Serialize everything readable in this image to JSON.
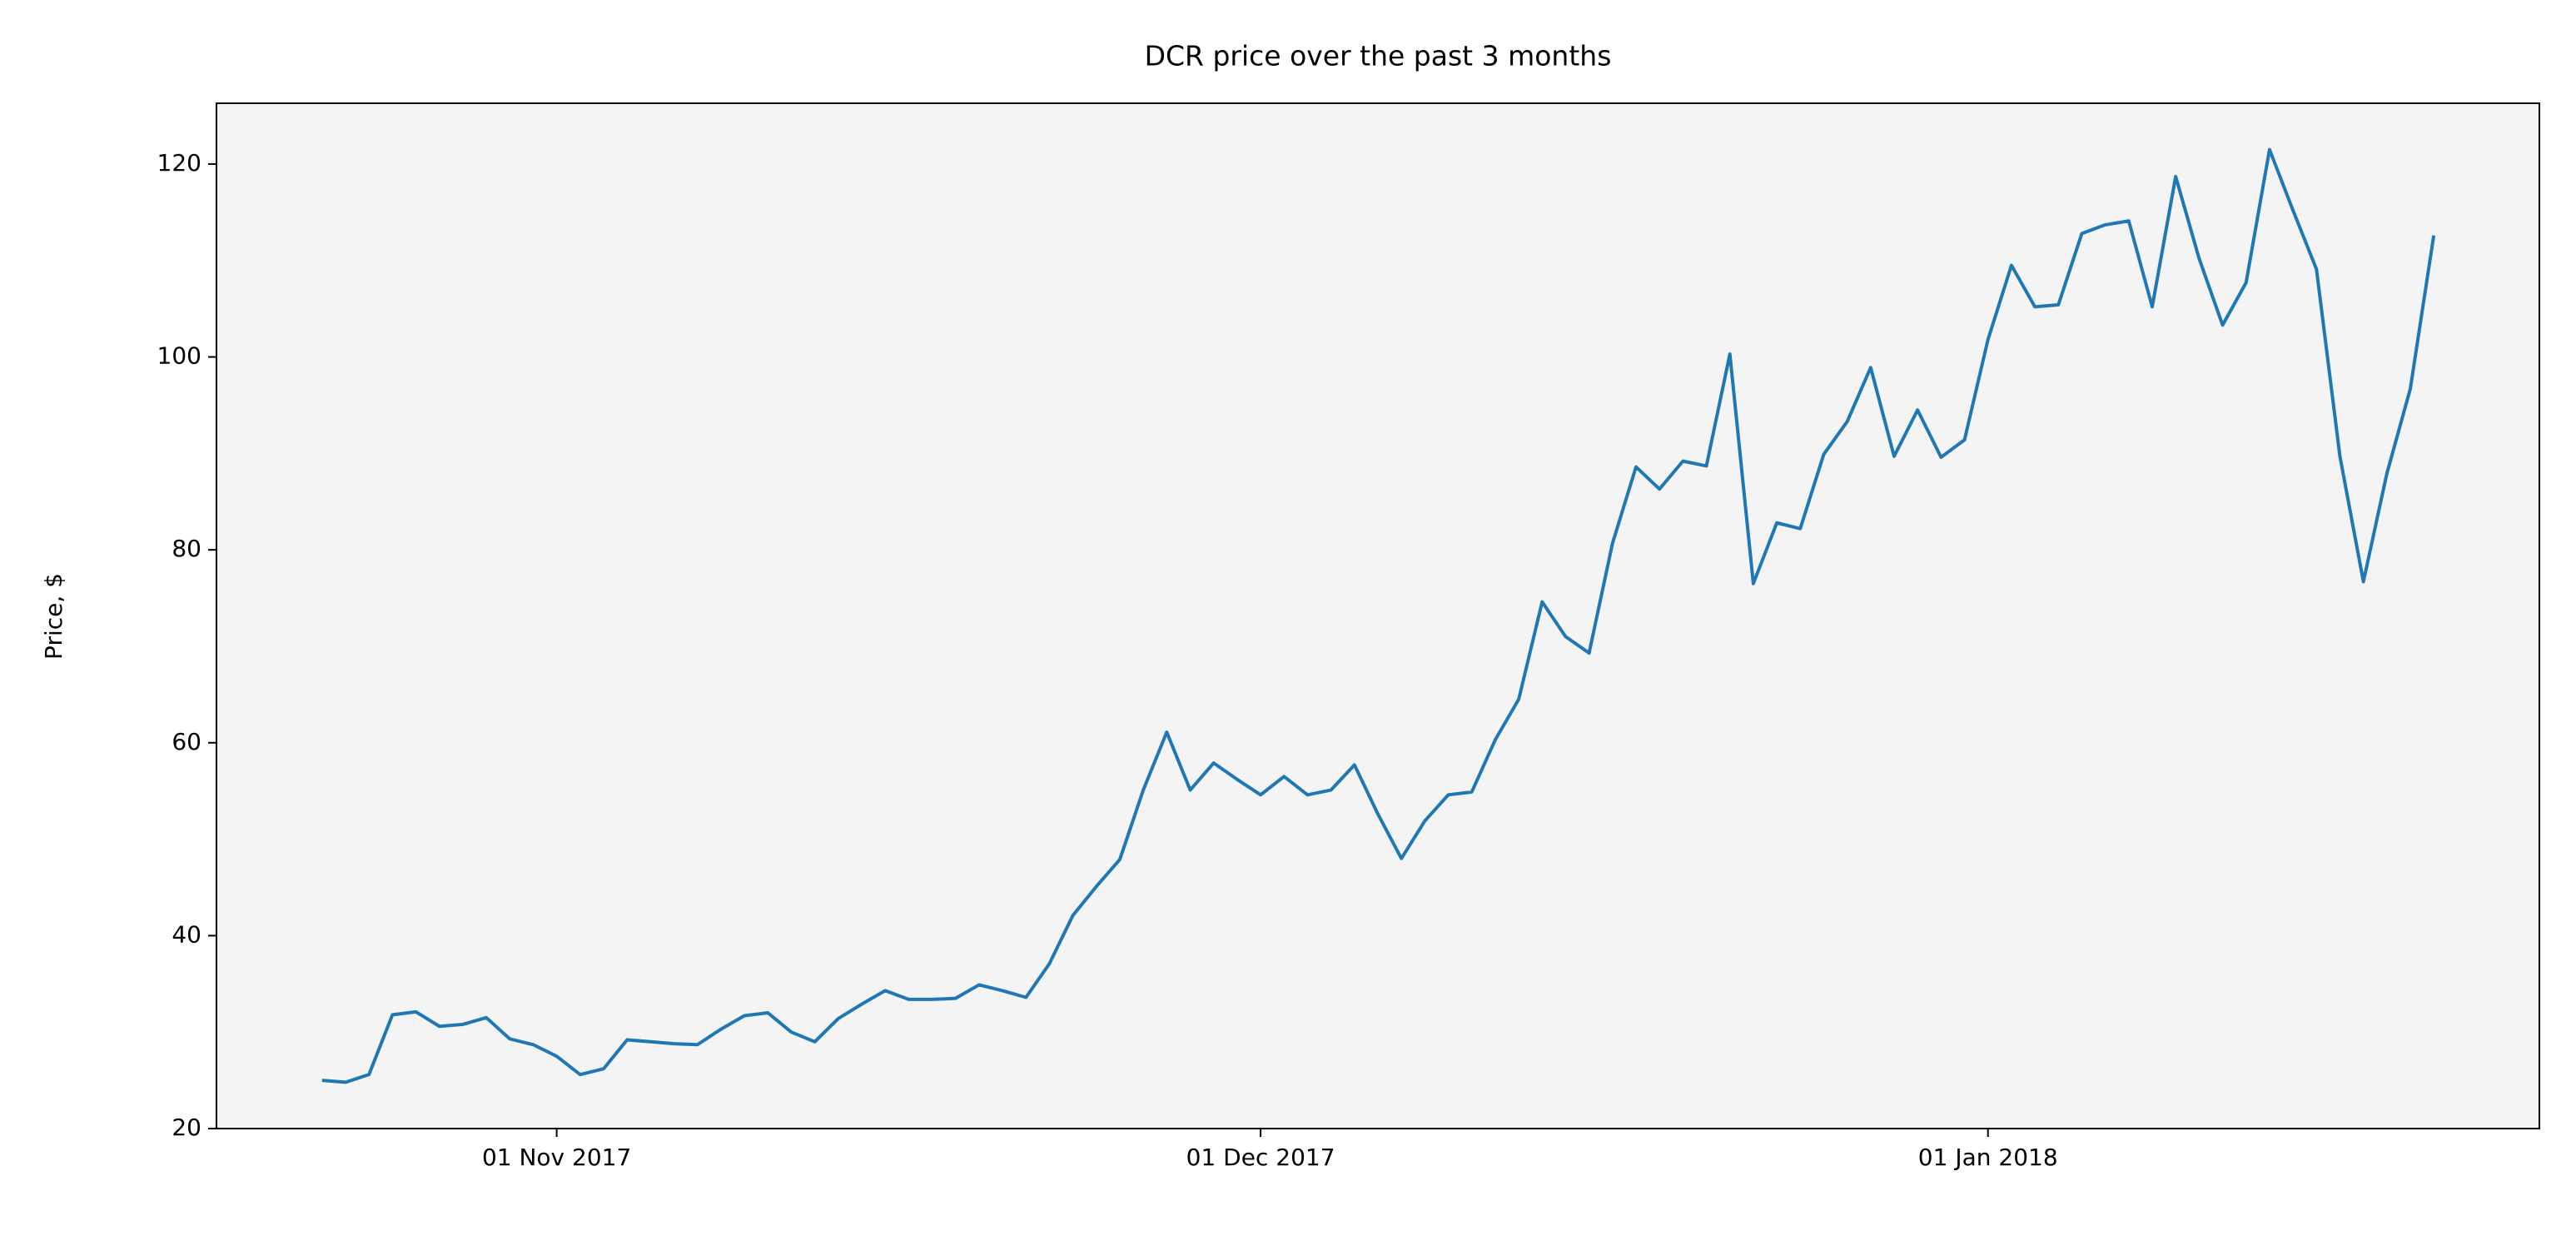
{
  "chart_data": {
    "type": "line",
    "title": "DCR price over the past 3 months",
    "y_label": "Price, $",
    "x": [
      "2017-10-22",
      "2017-10-23",
      "2017-10-24",
      "2017-10-25",
      "2017-10-26",
      "2017-10-27",
      "2017-10-28",
      "2017-10-29",
      "2017-10-30",
      "2017-10-31",
      "2017-11-01",
      "2017-11-02",
      "2017-11-03",
      "2017-11-04",
      "2017-11-05",
      "2017-11-06",
      "2017-11-07",
      "2017-11-08",
      "2017-11-09",
      "2017-11-10",
      "2017-11-11",
      "2017-11-12",
      "2017-11-13",
      "2017-11-14",
      "2017-11-15",
      "2017-11-16",
      "2017-11-17",
      "2017-11-18",
      "2017-11-19",
      "2017-11-20",
      "2017-11-21",
      "2017-11-22",
      "2017-11-23",
      "2017-11-24",
      "2017-11-25",
      "2017-11-26",
      "2017-11-27",
      "2017-11-28",
      "2017-11-29",
      "2017-11-30",
      "2017-12-01",
      "2017-12-02",
      "2017-12-03",
      "2017-12-04",
      "2017-12-05",
      "2017-12-06",
      "2017-12-07",
      "2017-12-08",
      "2017-12-09",
      "2017-12-10",
      "2017-12-11",
      "2017-12-12",
      "2017-12-13",
      "2017-12-14",
      "2017-12-15",
      "2017-12-16",
      "2017-12-17",
      "2017-12-18",
      "2017-12-19",
      "2017-12-20",
      "2017-12-21",
      "2017-12-22",
      "2017-12-23",
      "2017-12-24",
      "2017-12-25",
      "2017-12-26",
      "2017-12-27",
      "2017-12-28",
      "2017-12-29",
      "2017-12-30",
      "2017-12-31",
      "2018-01-01",
      "2018-01-02",
      "2018-01-03",
      "2018-01-04",
      "2018-01-05",
      "2018-01-06",
      "2018-01-07",
      "2018-01-08",
      "2018-01-09",
      "2018-01-10",
      "2018-01-11",
      "2018-01-12",
      "2018-01-13",
      "2018-01-14",
      "2018-01-15",
      "2018-01-16",
      "2018-01-17",
      "2018-01-18",
      "2018-01-19",
      "2018-01-20"
    ],
    "series": [
      {
        "name": "DCR",
        "color": "#1f77b4",
        "values": [
          25.0,
          24.8,
          25.6,
          31.8,
          32.1,
          30.6,
          30.8,
          31.5,
          29.3,
          28.7,
          27.5,
          25.6,
          26.2,
          29.2,
          29.0,
          28.8,
          28.7,
          30.3,
          31.7,
          32.0,
          30.0,
          29.0,
          31.4,
          32.9,
          34.3,
          33.4,
          33.4,
          33.5,
          34.9,
          34.3,
          33.6,
          37.1,
          42.1,
          45.1,
          47.9,
          55.1,
          61.1,
          55.1,
          57.9,
          56.2,
          54.6,
          56.5,
          54.6,
          55.1,
          57.7,
          52.6,
          48.0,
          51.9,
          54.6,
          54.9,
          60.3,
          64.5,
          74.6,
          71.0,
          69.3,
          80.7,
          88.6,
          86.3,
          89.2,
          88.7,
          100.3,
          76.5,
          82.8,
          82.2,
          89.9,
          93.3,
          98.9,
          89.7,
          94.5,
          89.6,
          91.4,
          101.8,
          109.5,
          105.2,
          105.4,
          112.8,
          113.7,
          114.1,
          105.2,
          118.7,
          110.2,
          103.3,
          107.7,
          121.5,
          115.2,
          109.1,
          89.7,
          76.7,
          87.9,
          96.7,
          112.6
        ]
      }
    ],
    "xlim": [
      "2017-10-17T12:00Z",
      "2018-01-24T12:00Z"
    ],
    "xticks": [
      {
        "value": "2017-11-01",
        "label": "01 Nov 2017"
      },
      {
        "value": "2017-12-01",
        "label": "01 Dec 2017"
      },
      {
        "value": "2018-01-01",
        "label": "01 Jan 2018"
      }
    ],
    "ylim": [
      20,
      126.3
    ],
    "yticks": [
      20,
      40,
      60,
      80,
      100,
      120
    ],
    "grid": false,
    "background": "#f4f4f4"
  }
}
